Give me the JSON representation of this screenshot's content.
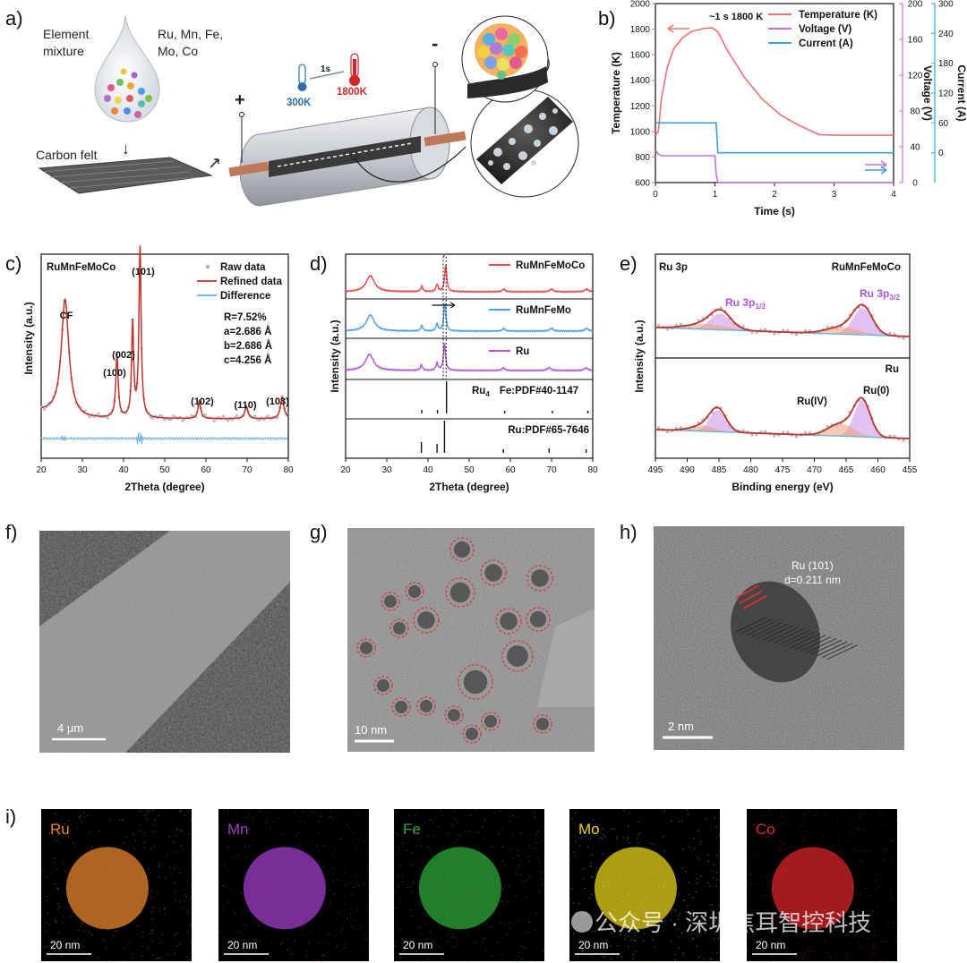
{
  "panels": {
    "a": {
      "label": "a)",
      "element_mixture": "Element",
      "element_mixture2": "mixture",
      "elements_line1": "Ru, Mn, Fe,",
      "elements_line2": "Mo, Co",
      "carbon_felt": "Carbon felt",
      "plus": "+",
      "minus": "-",
      "temp_low": "300K",
      "temp_high": "1800K",
      "time": "1s"
    },
    "b": {
      "label": "b)",
      "annotation": "~1 s 1800 K",
      "xlabel": "Time (s)",
      "ylabel_left": "Temperature (K)",
      "ylabel_mid": "Voltage (V)",
      "ylabel_right": "Current (A)",
      "legend": [
        "Temperature (K)",
        "Voltage (V)",
        "Current (A)"
      ]
    },
    "c": {
      "label": "c)",
      "sample": "RuMnFeMoCo",
      "legend": [
        "Raw data",
        "Refined data",
        "Difference"
      ],
      "params": [
        "R=7.52%",
        "a=2.686 Å",
        "b=2.686 Å",
        "c=4.256 Å"
      ],
      "peaks": [
        "CF",
        "(100)",
        "(002)",
        "(101)",
        "(102)",
        "(110)",
        "(103)"
      ]
    },
    "d": {
      "label": "d)",
      "series": [
        "RuMnFeMoCo",
        "RuMnFeMo",
        "Ru"
      ],
      "ref1_base": "Ru",
      "ref1_sub": "4",
      "ref1_rest": "Fe:PDF#40-1147",
      "ref2": "Ru:PDF#65-7646"
    },
    "e": {
      "label": "e)",
      "top_left": "Ru 3p",
      "top_right": "RuMnFeMoCo",
      "bottom_right": "Ru",
      "p12": "Ru 3p",
      "p12_sub": "1/2",
      "p32": "Ru 3p",
      "p32_sub": "3/2",
      "ru4": "Ru(IV)",
      "ru0": "Ru(0)",
      "xlabel": "Binding energy (eV)",
      "ylabel": "Intensity (a.u.)"
    },
    "f": {
      "label": "f)",
      "scale": "4 μm"
    },
    "g": {
      "label": "g)",
      "scale": "10 nm"
    },
    "h": {
      "label": "h)",
      "scale": "2 nm",
      "ann1": "Ru (101)",
      "ann2": "d=0.211 nm"
    },
    "i": {
      "label": "i)",
      "maps": [
        {
          "name": "Ru",
          "color": "#e8862e",
          "scale": "20 nm"
        },
        {
          "name": "Mn",
          "color": "#a23cc8",
          "scale": "20 nm"
        },
        {
          "name": "Fe",
          "color": "#2fa83a",
          "scale": "20 nm"
        },
        {
          "name": "Mo",
          "color": "#e6d21c",
          "scale": "20 nm"
        },
        {
          "name": "Co",
          "color": "#d8262a",
          "scale": "20 nm"
        }
      ]
    },
    "watermark": "公众号 · 深圳焦耳智控科技"
  },
  "chart_data": [
    {
      "type": "line",
      "title": "",
      "xlabel": "Time (s)",
      "xlim": [
        0,
        4
      ],
      "x_ticks": [
        0,
        1,
        2,
        3,
        4
      ],
      "y_axes": [
        {
          "label": "Temperature (K)",
          "lim": [
            600,
            2000
          ],
          "ticks": [
            600,
            800,
            1000,
            1200,
            1400,
            1600,
            1800,
            2000
          ],
          "color": "#f07070"
        },
        {
          "label": "Voltage (V)",
          "lim": [
            0,
            200
          ],
          "ticks": [
            0,
            40,
            80,
            120,
            160,
            200
          ],
          "color": "#c070e0"
        },
        {
          "label": "Current (A)",
          "lim": [
            -60,
            300
          ],
          "ticks": [
            0,
            60,
            120,
            180,
            240,
            300
          ],
          "color": "#3a9ee0"
        }
      ],
      "series": [
        {
          "name": "Temperature (K)",
          "x": [
            0,
            0.05,
            0.1,
            0.2,
            0.3,
            0.45,
            0.6,
            0.8,
            0.95,
            1.05,
            1.2,
            1.5,
            1.8,
            2.1,
            2.4,
            2.75,
            3.0,
            4.0
          ],
          "y": [
            970,
            1000,
            1250,
            1500,
            1640,
            1730,
            1780,
            1805,
            1810,
            1780,
            1640,
            1420,
            1250,
            1130,
            1050,
            975,
            970,
            970
          ]
        },
        {
          "name": "Voltage (V)",
          "x": [
            0,
            0.05,
            0.1,
            1.0,
            1.02,
            1.05,
            4.0
          ],
          "y": [
            36,
            32,
            30,
            30,
            10,
            0,
            0
          ]
        },
        {
          "name": "Current (A)",
          "x": [
            0,
            1.02,
            1.05,
            4.0
          ],
          "y": [
            60,
            60,
            0,
            0
          ]
        }
      ]
    },
    {
      "type": "line",
      "title": "RuMnFeMoCo",
      "xlabel": "2Theta (degree)",
      "ylabel": "Intensity (a.u.)",
      "xlim": [
        20,
        80
      ],
      "x_ticks": [
        20,
        30,
        40,
        50,
        60,
        70,
        80
      ],
      "series": [
        {
          "name": "Raw data",
          "peaks_2theta": [
            25.8,
            38.4,
            42.2,
            44.0,
            58.4,
            69.8,
            78.5
          ]
        },
        {
          "name": "Refined data",
          "peaks_2theta": [
            25.8,
            38.4,
            42.2,
            44.0,
            58.4,
            69.8,
            78.5
          ]
        },
        {
          "name": "Difference",
          "values": []
        }
      ]
    },
    {
      "type": "line",
      "title": "",
      "xlabel": "2Theta (degree)",
      "ylabel": "Intensity (a.u.)",
      "xlim": [
        20,
        80
      ],
      "x_ticks": [
        20,
        30,
        40,
        50,
        60,
        70,
        80
      ],
      "series": [
        {
          "name": "RuMnFeMoCo",
          "peaks_2theta": [
            26,
            38.5,
            42.2,
            44.3,
            58.4,
            70,
            78.5
          ]
        },
        {
          "name": "RuMnFeMo",
          "peaks_2theta": [
            26,
            38.5,
            42.2,
            44.1,
            58.4,
            70,
            78.5
          ]
        },
        {
          "name": "Ru",
          "peaks_2theta": [
            25.8,
            38.4,
            42.2,
            44.0,
            58.3,
            69.4,
            78.4
          ]
        },
        {
          "name": "Ru4Fe:PDF#40-1147",
          "sticks_2theta": [
            38.5,
            42.3,
            44.5,
            58.6,
            70.2,
            78.8
          ]
        },
        {
          "name": "Ru:PDF#65-7646",
          "sticks_2theta": [
            38.4,
            42.2,
            44.0,
            58.3,
            69.4,
            78.4
          ]
        }
      ]
    },
    {
      "type": "line",
      "title": "Ru 3p",
      "xlabel": "Binding energy (eV)",
      "ylabel": "Intensity (a.u.)",
      "xlim": [
        495,
        455
      ],
      "x_ticks": [
        495,
        490,
        485,
        480,
        475,
        470,
        465,
        460,
        455
      ],
      "series": [
        {
          "name": "RuMnFeMoCo Ru 3p1/2",
          "peak_eV": 484.8
        },
        {
          "name": "RuMnFeMoCo Ru 3p3/2",
          "peak_eV": 462.4
        },
        {
          "name": "Ru Ru(IV)",
          "peak_eV": 465.5
        },
        {
          "name": "Ru Ru(0)",
          "peak_eV": 462.5
        },
        {
          "name": "Ru 3p1/2 (Ru)",
          "peak_eV": 485.2
        }
      ]
    }
  ]
}
